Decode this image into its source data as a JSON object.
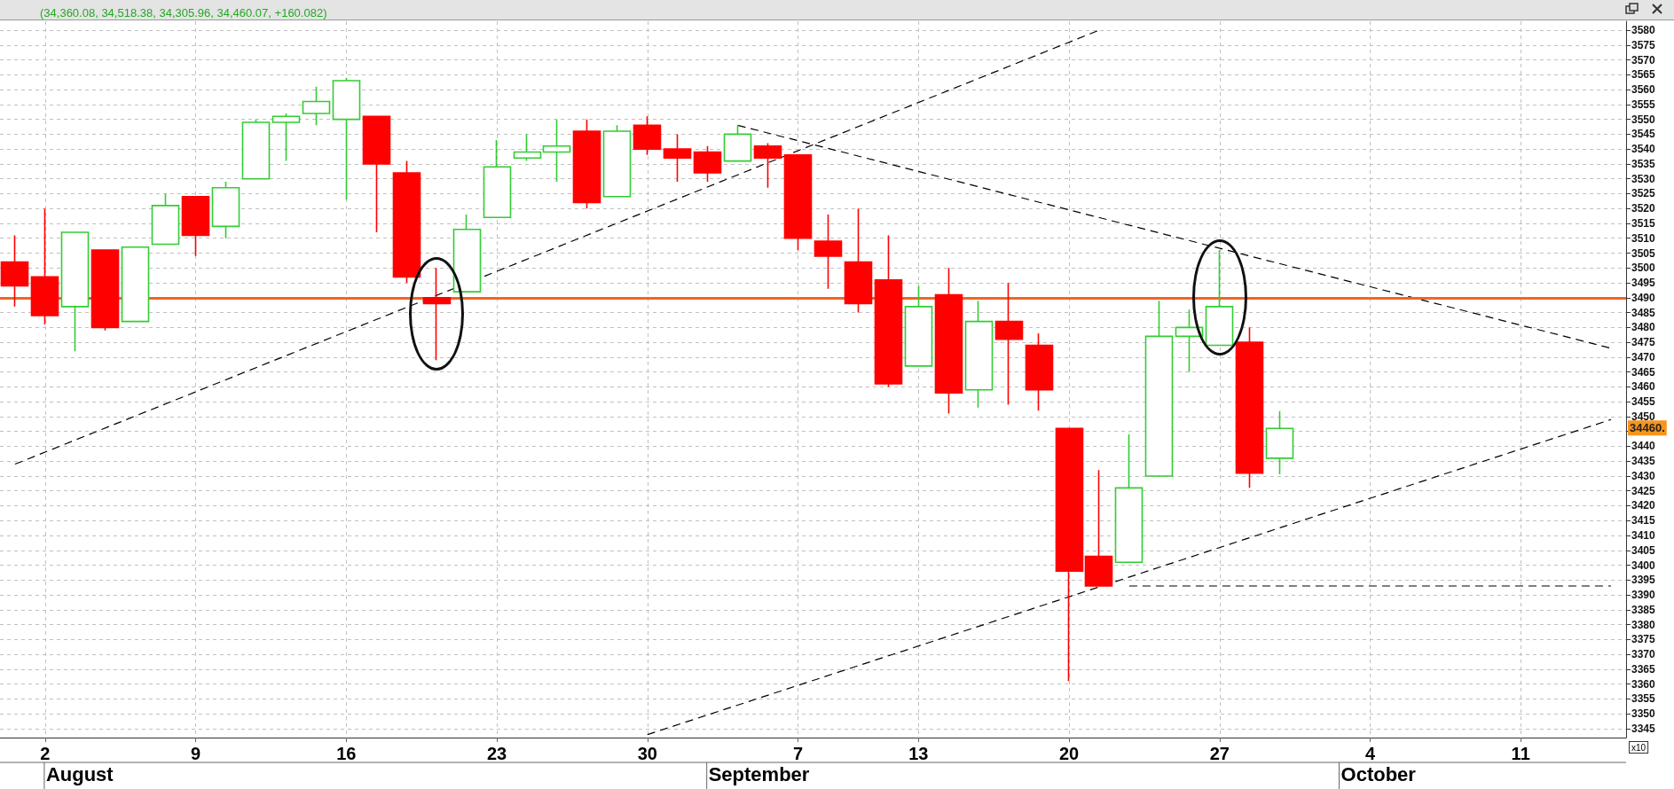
{
  "chart_data": {
    "type": "candlestick",
    "title": "(34,360.08, 34,518.38, 34,305.96, 34,460.07, +160.082)",
    "categories": [
      null,
      "2",
      null,
      null,
      null,
      null,
      "9",
      null,
      null,
      null,
      null,
      "16",
      null,
      null,
      null,
      null,
      "23",
      null,
      null,
      null,
      null,
      "30",
      null,
      null,
      null,
      null,
      "7",
      null,
      null,
      null,
      "13",
      null,
      null,
      null,
      null,
      "20",
      null,
      null,
      null,
      null,
      "27",
      null,
      null,
      null,
      null,
      "4",
      null,
      null,
      null,
      null,
      "11",
      null,
      null,
      null
    ],
    "ohlc": [
      [
        3502,
        3511,
        3487,
        3494
      ],
      [
        3497,
        3520,
        3481,
        3484
      ],
      [
        3487,
        3512,
        3472,
        3512
      ],
      [
        3506,
        3506,
        3479,
        3480
      ],
      [
        3482,
        3507,
        3482,
        3507
      ],
      [
        3508,
        3525,
        3508,
        3521
      ],
      [
        3524,
        3524,
        3504,
        3511
      ],
      [
        3514,
        3529,
        3510,
        3527
      ],
      [
        3530,
        3550,
        3530,
        3549
      ],
      [
        3549,
        3552,
        3536,
        3551
      ],
      [
        3552,
        3561,
        3548,
        3556
      ],
      [
        3550,
        3564,
        3523,
        3563
      ],
      [
        3551,
        3551,
        3512,
        3535
      ],
      [
        3532,
        3536,
        3495,
        3497
      ],
      [
        3490,
        3500,
        3469,
        3488
      ],
      [
        3492,
        3518,
        3492,
        3513
      ],
      [
        3517,
        3543,
        3517,
        3534
      ],
      [
        3537,
        3545,
        3536,
        3539
      ],
      [
        3539,
        3550,
        3529,
        3541
      ],
      [
        3546,
        3550,
        3520,
        3522
      ],
      [
        3524,
        3548,
        3524,
        3546
      ],
      [
        3548,
        3551,
        3538,
        3540
      ],
      [
        3540,
        3545,
        3529,
        3537
      ],
      [
        3539,
        3541,
        3529,
        3532
      ],
      [
        3536,
        3548,
        3536,
        3545
      ],
      [
        3541,
        3542,
        3527,
        3537
      ],
      [
        3538,
        3538,
        3506,
        3510
      ],
      [
        3509,
        3518,
        3493,
        3504
      ],
      [
        3502,
        3520,
        3485,
        3488
      ],
      [
        3496,
        3511,
        3460,
        3461
      ],
      [
        3467,
        3494,
        3467,
        3487
      ],
      [
        3491,
        3500,
        3451,
        3458
      ],
      [
        3459,
        3489,
        3453,
        3482
      ],
      [
        3482,
        3495,
        3454,
        3476
      ],
      [
        3474,
        3478,
        3452,
        3459
      ],
      [
        3446,
        3446,
        3361,
        3398
      ],
      [
        3403,
        3432,
        3393,
        3393
      ],
      [
        3401,
        3444,
        3401,
        3426
      ],
      [
        3430,
        3489,
        3430,
        3477
      ],
      [
        3477,
        3486,
        3465,
        3480
      ],
      [
        3474,
        3506,
        3474,
        3487
      ],
      [
        3475,
        3480,
        3426,
        3431
      ],
      [
        3436.0,
        3451.8,
        3430.6,
        3446.0
      ],
      null,
      null,
      null,
      null,
      null,
      null,
      null,
      null,
      null,
      null,
      null
    ],
    "colors": [
      "#ff0000",
      "#ff0000",
      "#33cc33",
      "#ff0000",
      "#33cc33",
      "#33cc33",
      "#ff0000",
      "#33cc33",
      "#33cc33",
      "#33cc33",
      "#33cc33",
      "#33cc33",
      "#ff0000",
      "#ff0000",
      "#ff0000",
      "#33cc33",
      "#33cc33",
      "#33cc33",
      "#33cc33",
      "#ff0000",
      "#33cc33",
      "#ff0000",
      "#ff0000",
      "#ff0000",
      "#33cc33",
      "#ff0000",
      "#ff0000",
      "#ff0000",
      "#ff0000",
      "#ff0000",
      "#33cc33",
      "#ff0000",
      "#33cc33",
      "#ff0000",
      "#ff0000",
      "#ff0000",
      "#ff0000",
      "#33cc33",
      "#33cc33",
      "#33cc33",
      "#33cc33",
      "#ff0000",
      "#33cc33",
      null,
      null,
      null,
      null,
      null,
      null,
      null,
      null,
      null,
      null,
      null
    ],
    "series": [
      {
        "type": "line",
        "color": "#000000",
        "line_style": "dashed",
        "values": [
          3434,
          null,
          null,
          null,
          null,
          null,
          null,
          null,
          null,
          null,
          null,
          null,
          null,
          null,
          null,
          null,
          null,
          null,
          null,
          null,
          null,
          null,
          null,
          null,
          null,
          null,
          null,
          null,
          null,
          null,
          null,
          null,
          null,
          null,
          null,
          null,
          3580,
          null,
          null,
          null,
          null,
          null,
          null,
          null,
          null,
          null,
          null,
          null,
          null,
          null,
          null,
          null,
          null,
          null
        ]
      },
      {
        "type": "line",
        "color": "#000000",
        "line_style": "dashed",
        "values": [
          null,
          null,
          null,
          null,
          null,
          null,
          null,
          null,
          null,
          null,
          null,
          null,
          null,
          null,
          null,
          null,
          null,
          null,
          null,
          null,
          null,
          null,
          null,
          null,
          3548,
          null,
          null,
          null,
          null,
          null,
          null,
          null,
          null,
          null,
          null,
          null,
          null,
          null,
          null,
          null,
          null,
          null,
          null,
          null,
          null,
          null,
          null,
          null,
          null,
          null,
          null,
          null,
          null,
          3473
        ]
      },
      {
        "type": "line",
        "color": "#000000",
        "line_style": "dashed",
        "values": [
          null,
          null,
          null,
          null,
          null,
          null,
          null,
          null,
          null,
          null,
          null,
          null,
          null,
          null,
          null,
          null,
          null,
          null,
          null,
          null,
          null,
          3343,
          null,
          null,
          null,
          null,
          null,
          null,
          null,
          null,
          null,
          null,
          null,
          null,
          null,
          null,
          null,
          null,
          null,
          null,
          null,
          null,
          null,
          null,
          null,
          null,
          null,
          null,
          null,
          null,
          null,
          null,
          null,
          3449
        ]
      },
      {
        "type": "line",
        "color": "#000000",
        "line_style": "dashed",
        "values": [
          null,
          null,
          null,
          null,
          null,
          null,
          null,
          null,
          null,
          null,
          null,
          null,
          null,
          null,
          null,
          null,
          null,
          null,
          null,
          null,
          null,
          null,
          null,
          null,
          null,
          null,
          null,
          null,
          null,
          null,
          null,
          null,
          null,
          null,
          null,
          null,
          null,
          3393,
          null,
          null,
          null,
          null,
          null,
          null,
          null,
          null,
          null,
          null,
          null,
          null,
          null,
          null,
          null,
          3393
        ]
      }
    ],
    "ref_lines": [
      {
        "axis": "y",
        "value": 3490,
        "color": "#f26522"
      }
    ],
    "ylim": [
      3342,
      3583
    ],
    "yticks": [
      3345,
      3350,
      3355,
      3360,
      3365,
      3370,
      3375,
      3380,
      3385,
      3390,
      3395,
      3400,
      3405,
      3410,
      3415,
      3420,
      3425,
      3430,
      3435,
      3440,
      {
        "value": 3445,
        "label": null
      },
      3450,
      3455,
      3460,
      3465,
      3470,
      3475,
      3480,
      3485,
      3490,
      3495,
      3500,
      3505,
      3510,
      3515,
      3520,
      3525,
      3530,
      3535,
      3540,
      3545,
      3550,
      3555,
      3560,
      3565,
      3570,
      3575,
      3580
    ],
    "grid": true,
    "annotations": [
      {
        "text": "34460.",
        "y": 3446.0
      },
      "August",
      "September",
      "October",
      "x10"
    ]
  }
}
